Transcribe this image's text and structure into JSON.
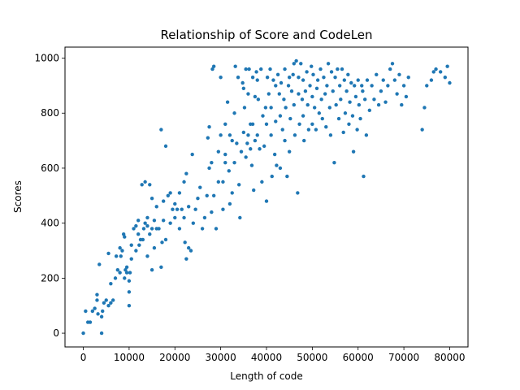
{
  "chart_data": {
    "type": "scatter",
    "title": "Relationship of Score and CodeLen",
    "xlabel": "Length of code",
    "ylabel": "Scores",
    "xlim": [
      -4000,
      84000
    ],
    "ylim": [
      -50,
      1040
    ],
    "xticks": [
      0,
      10000,
      20000,
      30000,
      40000,
      50000,
      60000,
      70000,
      80000
    ],
    "yticks": [
      0,
      200,
      400,
      600,
      800,
      1000
    ],
    "grid": false,
    "marker_color": "#1f77b4",
    "series": [
      {
        "points": [
          [
            0,
            0
          ],
          [
            500,
            80
          ],
          [
            1000,
            40
          ],
          [
            1500,
            40
          ],
          [
            2000,
            80
          ],
          [
            2500,
            90
          ],
          [
            3000,
            120
          ],
          [
            3000,
            140
          ],
          [
            3200,
            70
          ],
          [
            3500,
            250
          ],
          [
            4000,
            0
          ],
          [
            4000,
            60
          ],
          [
            4200,
            80
          ],
          [
            4500,
            110
          ],
          [
            5000,
            120
          ],
          [
            5500,
            100
          ],
          [
            5500,
            290
          ],
          [
            6000,
            110
          ],
          [
            6000,
            180
          ],
          [
            6500,
            120
          ],
          [
            7000,
            200
          ],
          [
            7200,
            280
          ],
          [
            7500,
            230
          ],
          [
            8000,
            310
          ],
          [
            8000,
            220
          ],
          [
            8200,
            280
          ],
          [
            8500,
            300
          ],
          [
            8800,
            360
          ],
          [
            9000,
            350
          ],
          [
            9000,
            200
          ],
          [
            9200,
            230
          ],
          [
            9500,
            240
          ],
          [
            9500,
            220
          ],
          [
            10000,
            100
          ],
          [
            10000,
            150
          ],
          [
            10000,
            190
          ],
          [
            10200,
            220
          ],
          [
            10500,
            270
          ],
          [
            10500,
            320
          ],
          [
            11000,
            380
          ],
          [
            11500,
            300
          ],
          [
            11500,
            390
          ],
          [
            12000,
            410
          ],
          [
            12000,
            360
          ],
          [
            12200,
            320
          ],
          [
            12500,
            340
          ],
          [
            12800,
            540
          ],
          [
            13000,
            340
          ],
          [
            13200,
            380
          ],
          [
            13500,
            400
          ],
          [
            13500,
            550
          ],
          [
            14000,
            280
          ],
          [
            14000,
            390
          ],
          [
            14000,
            420
          ],
          [
            14500,
            360
          ],
          [
            14500,
            540
          ],
          [
            15000,
            380
          ],
          [
            15000,
            490
          ],
          [
            15000,
            230
          ],
          [
            15500,
            310
          ],
          [
            15500,
            410
          ],
          [
            16000,
            380
          ],
          [
            16000,
            460
          ],
          [
            16500,
            380
          ],
          [
            17000,
            240
          ],
          [
            17000,
            740
          ],
          [
            17200,
            330
          ],
          [
            17500,
            480
          ],
          [
            17500,
            410
          ],
          [
            18000,
            340
          ],
          [
            18000,
            680
          ],
          [
            18500,
            500
          ],
          [
            19000,
            510
          ],
          [
            19000,
            400
          ],
          [
            19500,
            450
          ],
          [
            20000,
            420
          ],
          [
            20000,
            470
          ],
          [
            20500,
            450
          ],
          [
            21000,
            510
          ],
          [
            21000,
            380
          ],
          [
            21500,
            450
          ],
          [
            22000,
            420
          ],
          [
            22000,
            550
          ],
          [
            22200,
            330
          ],
          [
            22500,
            580
          ],
          [
            22500,
            270
          ],
          [
            23000,
            310
          ],
          [
            23000,
            460
          ],
          [
            23500,
            300
          ],
          [
            23800,
            650
          ],
          [
            24000,
            400
          ],
          [
            24500,
            450
          ],
          [
            25000,
            490
          ],
          [
            25500,
            530
          ],
          [
            26000,
            380
          ],
          [
            26500,
            420
          ],
          [
            27000,
            500
          ],
          [
            27200,
            710
          ],
          [
            27500,
            750
          ],
          [
            27500,
            600
          ],
          [
            28000,
            620
          ],
          [
            28000,
            440
          ],
          [
            28200,
            960
          ],
          [
            28500,
            970
          ],
          [
            28500,
            500
          ],
          [
            29000,
            380
          ],
          [
            29500,
            550
          ],
          [
            29500,
            660
          ],
          [
            30000,
            720
          ],
          [
            30000,
            930
          ],
          [
            30500,
            450
          ],
          [
            30500,
            550
          ],
          [
            31000,
            650
          ],
          [
            31000,
            760
          ],
          [
            31000,
            620
          ],
          [
            31500,
            840
          ],
          [
            31800,
            590
          ],
          [
            32000,
            470
          ],
          [
            32000,
            720
          ],
          [
            32500,
            510
          ],
          [
            32500,
            700
          ],
          [
            33000,
            800
          ],
          [
            33000,
            620
          ],
          [
            33200,
            970
          ],
          [
            33500,
            690
          ],
          [
            33800,
            930
          ],
          [
            34000,
            540
          ],
          [
            34200,
            420
          ],
          [
            34500,
            660
          ],
          [
            34800,
            910
          ],
          [
            35000,
            730
          ],
          [
            35000,
            890
          ],
          [
            35200,
            820
          ],
          [
            35500,
            960
          ],
          [
            35500,
            640
          ],
          [
            35800,
            690
          ],
          [
            36000,
            720
          ],
          [
            36000,
            870
          ],
          [
            36200,
            960
          ],
          [
            36500,
            760
          ],
          [
            36500,
            670
          ],
          [
            36800,
            610
          ],
          [
            37000,
            930
          ],
          [
            37000,
            760
          ],
          [
            37200,
            520
          ],
          [
            37500,
            860
          ],
          [
            37500,
            700
          ],
          [
            37800,
            950
          ],
          [
            38000,
            720
          ],
          [
            38000,
            920
          ],
          [
            38200,
            850
          ],
          [
            38500,
            670
          ],
          [
            38800,
            960
          ],
          [
            39000,
            550
          ],
          [
            39200,
            790
          ],
          [
            39500,
            680
          ],
          [
            39800,
            820
          ],
          [
            40000,
            480
          ],
          [
            40000,
            760
          ],
          [
            40200,
            930
          ],
          [
            40500,
            870
          ],
          [
            40800,
            960
          ],
          [
            41000,
            820
          ],
          [
            41000,
            720
          ],
          [
            41200,
            570
          ],
          [
            41500,
            920
          ],
          [
            41800,
            650
          ],
          [
            42000,
            900
          ],
          [
            42000,
            770
          ],
          [
            42200,
            610
          ],
          [
            42500,
            940
          ],
          [
            42800,
            870
          ],
          [
            43000,
            790
          ],
          [
            43000,
            600
          ],
          [
            43200,
            910
          ],
          [
            43500,
            740
          ],
          [
            43800,
            850
          ],
          [
            44000,
            960
          ],
          [
            44000,
            700
          ],
          [
            44200,
            820
          ],
          [
            44500,
            570
          ],
          [
            44800,
            900
          ],
          [
            45000,
            930
          ],
          [
            45000,
            660
          ],
          [
            45200,
            780
          ],
          [
            45500,
            880
          ],
          [
            45800,
            940
          ],
          [
            46000,
            830
          ],
          [
            46000,
            980
          ],
          [
            46200,
            720
          ],
          [
            46500,
            990
          ],
          [
            46800,
            510
          ],
          [
            47000,
            870
          ],
          [
            47000,
            930
          ],
          [
            47200,
            760
          ],
          [
            47500,
            980
          ],
          [
            47800,
            850
          ],
          [
            48000,
            790
          ],
          [
            48000,
            920
          ],
          [
            48200,
            700
          ],
          [
            48500,
            880
          ],
          [
            48800,
            950
          ],
          [
            49000,
            830
          ],
          [
            49200,
            740
          ],
          [
            49500,
            900
          ],
          [
            49800,
            970
          ],
          [
            50000,
            760
          ],
          [
            50000,
            860
          ],
          [
            50200,
            940
          ],
          [
            50500,
            820
          ],
          [
            50800,
            740
          ],
          [
            51000,
            890
          ],
          [
            51200,
            920
          ],
          [
            51500,
            800
          ],
          [
            51800,
            960
          ],
          [
            52000,
            850
          ],
          [
            52200,
            780
          ],
          [
            52500,
            930
          ],
          [
            52800,
            870
          ],
          [
            53000,
            750
          ],
          [
            53200,
            900
          ],
          [
            53500,
            980
          ],
          [
            53800,
            820
          ],
          [
            54000,
            720
          ],
          [
            54200,
            950
          ],
          [
            54500,
            880
          ],
          [
            54800,
            620
          ],
          [
            55000,
            930
          ],
          [
            55200,
            830
          ],
          [
            55500,
            960
          ],
          [
            55800,
            780
          ],
          [
            56000,
            900
          ],
          [
            56200,
            850
          ],
          [
            56500,
            960
          ],
          [
            56800,
            730
          ],
          [
            57000,
            920
          ],
          [
            57200,
            800
          ],
          [
            57500,
            880
          ],
          [
            57800,
            940
          ],
          [
            58000,
            760
          ],
          [
            58200,
            840
          ],
          [
            58500,
            910
          ],
          [
            58800,
            790
          ],
          [
            59000,
            660
          ],
          [
            59200,
            900
          ],
          [
            59500,
            860
          ],
          [
            59800,
            740
          ],
          [
            60000,
            920
          ],
          [
            60200,
            830
          ],
          [
            60500,
            780
          ],
          [
            60800,
            900
          ],
          [
            61000,
            880
          ],
          [
            61200,
            570
          ],
          [
            61500,
            850
          ],
          [
            61800,
            720
          ],
          [
            62000,
            920
          ],
          [
            62500,
            810
          ],
          [
            63000,
            900
          ],
          [
            63500,
            850
          ],
          [
            64000,
            940
          ],
          [
            64500,
            830
          ],
          [
            65000,
            880
          ],
          [
            65500,
            920
          ],
          [
            66000,
            840
          ],
          [
            66500,
            900
          ],
          [
            67000,
            960
          ],
          [
            67500,
            980
          ],
          [
            68000,
            920
          ],
          [
            68500,
            870
          ],
          [
            69000,
            940
          ],
          [
            69500,
            830
          ],
          [
            70000,
            900
          ],
          [
            70500,
            860
          ],
          [
            71000,
            930
          ],
          [
            74000,
            740
          ],
          [
            74500,
            820
          ],
          [
            75000,
            900
          ],
          [
            76000,
            920
          ],
          [
            76500,
            950
          ],
          [
            77000,
            960
          ],
          [
            78000,
            950
          ],
          [
            79000,
            930
          ],
          [
            79500,
            970
          ],
          [
            80000,
            910
          ]
        ]
      }
    ]
  }
}
